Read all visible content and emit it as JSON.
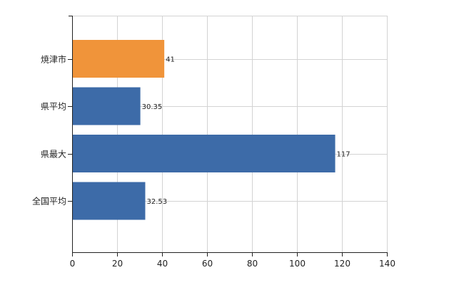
{
  "chart_data": {
    "type": "bar",
    "orientation": "horizontal",
    "categories": [
      "焼津市",
      "県平均",
      "県最大",
      "全国平均"
    ],
    "values": [
      41,
      30.35,
      117,
      32.53
    ],
    "data_labels": [
      "41",
      "30.35",
      "117",
      "32.53"
    ],
    "xlim": [
      0,
      140
    ],
    "x_ticks": [
      0,
      20,
      40,
      60,
      80,
      100,
      120,
      140
    ],
    "x_tick_labels": [
      "0",
      "20",
      "40",
      "60",
      "80",
      "100",
      "120",
      "140"
    ],
    "grid": true,
    "colors": {
      "highlight": "#f0943a",
      "default": "#3d6ba8",
      "grid": "#d3d3d3",
      "axis": "#222222"
    },
    "highlight_category": "焼津市"
  }
}
